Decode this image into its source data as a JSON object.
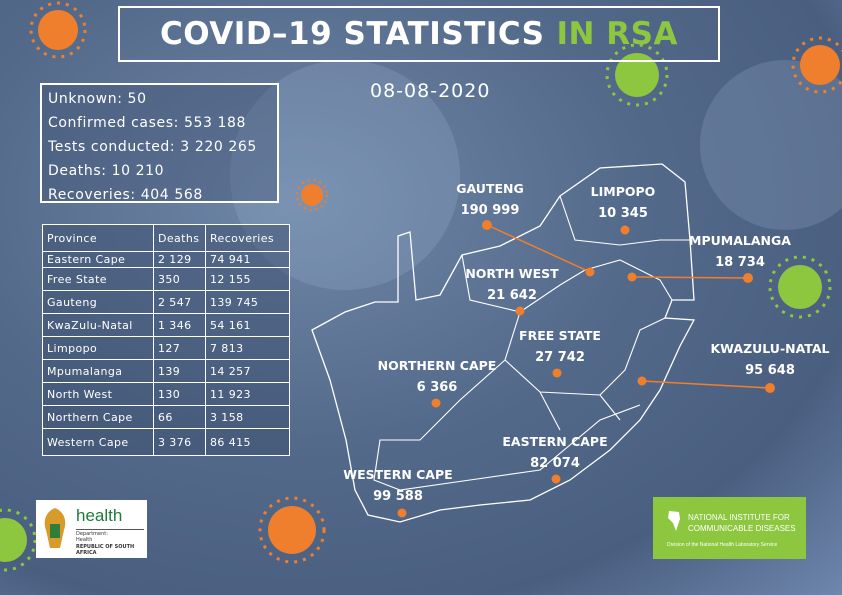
{
  "title": {
    "main": "COVID–19 STATISTICS",
    "highlight": "IN RSA"
  },
  "date": "08-08-2020",
  "summary": [
    "Unknown: 50",
    "Confirmed cases: 553 188",
    "Tests conducted: 3 220 265",
    "Deaths: 10 210",
    "Recoveries: 404 568"
  ],
  "table": {
    "headers": [
      "Province",
      "Deaths",
      "Recoveries"
    ],
    "rows": [
      [
        "Eastern Cape",
        "2 129",
        "74 941"
      ],
      [
        "Free State",
        "350",
        "12 155"
      ],
      [
        "Gauteng",
        "2 547",
        "139 745"
      ],
      [
        "KwaZulu-Natal",
        "1 346",
        "54 161"
      ],
      [
        "Limpopo",
        "127",
        "7 813"
      ],
      [
        "Mpumalanga",
        "139",
        "14 257"
      ],
      [
        "North West",
        "130",
        "11 923"
      ],
      [
        "Northern Cape",
        "66",
        "3 158"
      ],
      [
        "Western Cape",
        "3 376",
        "86 415"
      ]
    ]
  },
  "map": {
    "provinces": [
      {
        "name": "GAUTENG",
        "cases": "190 999"
      },
      {
        "name": "LIMPOPO",
        "cases": "10 345"
      },
      {
        "name": "MPUMALANGA",
        "cases": "18 734"
      },
      {
        "name": "NORTH WEST",
        "cases": "21 642"
      },
      {
        "name": "FREE STATE",
        "cases": "27 742"
      },
      {
        "name": "KWAZULU-NATAL",
        "cases": "95 648"
      },
      {
        "name": "NORTHERN CAPE",
        "cases": "6 366"
      },
      {
        "name": "EASTERN CAPE",
        "cases": "82 074"
      },
      {
        "name": "WESTERN CAPE",
        "cases": "99 588"
      }
    ],
    "marker_color": "#f07f2d"
  },
  "logos": {
    "health": {
      "word": "health",
      "line1": "Department:",
      "line2": "Health",
      "line3": "REPUBLIC OF SOUTH AFRICA"
    },
    "nicd": {
      "line1": "NATIONAL INSTITUTE FOR",
      "line2": "COMMUNICABLE DISEASES",
      "line3": "Division of the National Health Laboratory Service"
    }
  },
  "colors": {
    "accent_green": "#8dc63f",
    "accent_orange": "#f07f2d",
    "background": "#53698a"
  }
}
